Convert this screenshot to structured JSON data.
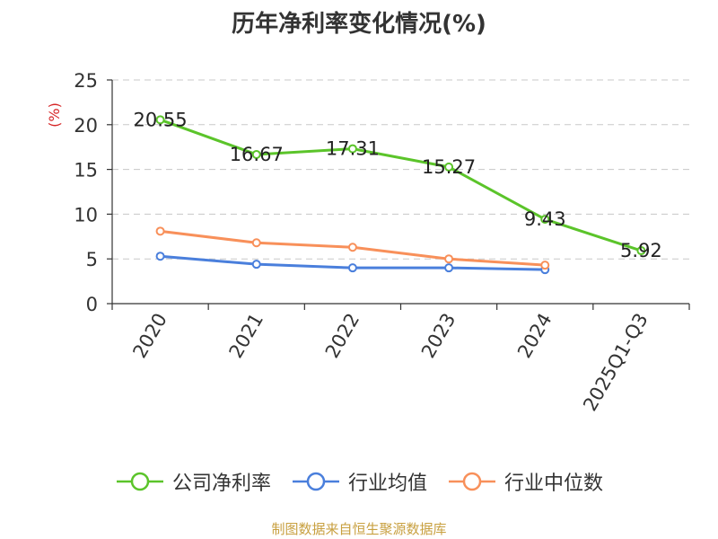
{
  "chart_data": {
    "type": "line",
    "title": "历年净利率变化情况(%)",
    "ylabel": "(%)",
    "categories": [
      "2020",
      "2021",
      "2022",
      "2023",
      "2024",
      "2025Q1-Q3"
    ],
    "ylim": [
      0,
      25
    ],
    "yticks": [
      0,
      5,
      10,
      15,
      20,
      25
    ],
    "grid": "horizontal dashed",
    "legend_position": "bottom",
    "series": [
      {
        "name": "公司净利率",
        "color": "#5bc42a",
        "values": [
          20.55,
          16.67,
          17.31,
          15.27,
          9.43,
          5.92
        ],
        "labels": [
          "20.55",
          "16.67",
          "17.31",
          "15.27",
          "9.43",
          "5.92"
        ]
      },
      {
        "name": "行业均值",
        "color": "#4a7fdc",
        "values": [
          5.3,
          4.4,
          4.0,
          4.0,
          3.8,
          null
        ]
      },
      {
        "name": "行业中位数",
        "color": "#f8905a",
        "values": [
          8.1,
          6.8,
          6.3,
          5.0,
          4.3,
          null
        ]
      }
    ]
  },
  "source": "制图数据来自恒生聚源数据库"
}
